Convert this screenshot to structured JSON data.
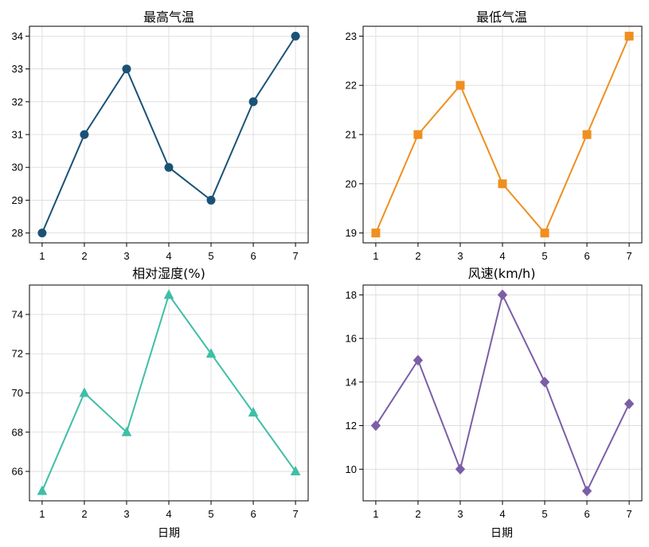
{
  "chart_data": [
    {
      "type": "line",
      "title": "最高气温",
      "xlabel": "",
      "ylabel": "",
      "x": [
        1,
        2,
        3,
        4,
        5,
        6,
        7
      ],
      "xticks": [
        1,
        2,
        3,
        4,
        5,
        6,
        7
      ],
      "ylim": [
        27.7,
        34.3
      ],
      "yticks": [
        28,
        29,
        30,
        31,
        32,
        33,
        34
      ],
      "grid": true,
      "color": "#1a5276",
      "marker": "circle",
      "series": [
        {
          "values": [
            28,
            31,
            33,
            30,
            29,
            32,
            34
          ]
        }
      ]
    },
    {
      "type": "line",
      "title": "最低气温",
      "xlabel": "",
      "ylabel": "",
      "x": [
        1,
        2,
        3,
        4,
        5,
        6,
        7
      ],
      "xticks": [
        1,
        2,
        3,
        4,
        5,
        6,
        7
      ],
      "ylim": [
        18.8,
        23.2
      ],
      "yticks": [
        19,
        20,
        21,
        22,
        23
      ],
      "grid": true,
      "color": "#ef8f1f",
      "marker": "square",
      "series": [
        {
          "values": [
            19,
            21,
            22,
            20,
            19,
            21,
            23
          ]
        }
      ]
    },
    {
      "type": "line",
      "title": "相对湿度(%)",
      "xlabel": "日期",
      "ylabel": "",
      "x": [
        1,
        2,
        3,
        4,
        5,
        6,
        7
      ],
      "xticks": [
        1,
        2,
        3,
        4,
        5,
        6,
        7
      ],
      "ylim": [
        64.5,
        75.5
      ],
      "yticks": [
        66,
        68,
        70,
        72,
        74
      ],
      "grid": true,
      "color": "#3fbfa6",
      "marker": "triangle",
      "series": [
        {
          "values": [
            65,
            70,
            68,
            75,
            72,
            69,
            66
          ]
        }
      ]
    },
    {
      "type": "line",
      "title": "风速(km/h)",
      "xlabel": "日期",
      "ylabel": "",
      "x": [
        1,
        2,
        3,
        4,
        5,
        6,
        7
      ],
      "xticks": [
        1,
        2,
        3,
        4,
        5,
        6,
        7
      ],
      "ylim": [
        8.55,
        18.45
      ],
      "yticks": [
        10,
        12,
        14,
        16,
        18
      ],
      "grid": true,
      "color": "#7b5ea7",
      "marker": "diamond",
      "series": [
        {
          "values": [
            12,
            15,
            10,
            18,
            14,
            9,
            13
          ]
        }
      ]
    }
  ]
}
